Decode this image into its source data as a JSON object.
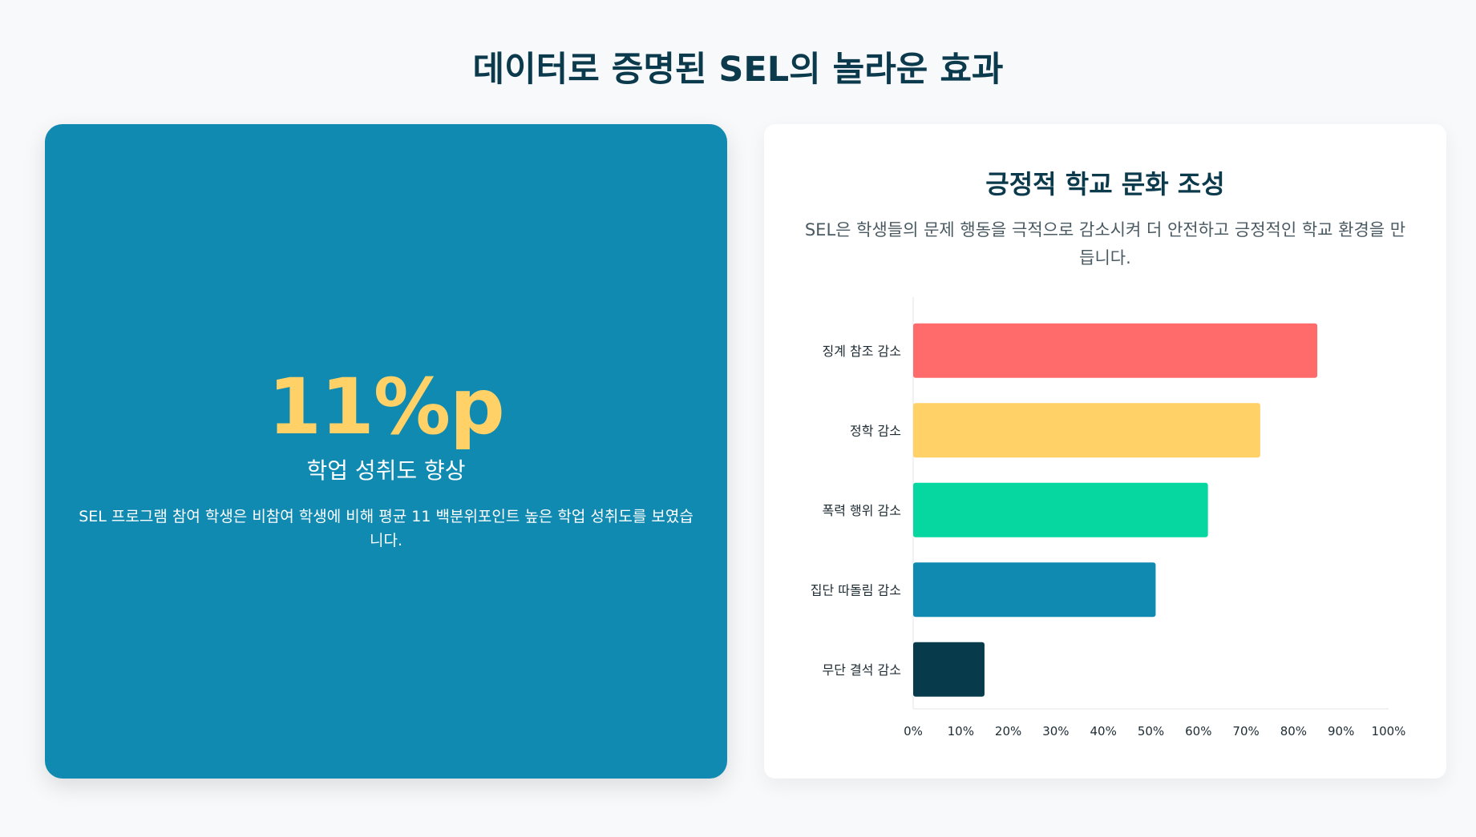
{
  "page": {
    "title": "데이터로 증명된 SEL의 놀라운 효과"
  },
  "stat_card": {
    "value": "11%p",
    "label": "학업 성취도 향상",
    "description": "SEL 프로그램 참여 학생은 비참여 학생에 비해 평균 11 백분위포인트 높은 학업 성취도를 보였습니다.",
    "background": "#118ab2",
    "value_color": "#ffd166"
  },
  "chart_card": {
    "title": "긍정적 학교 문화 조성",
    "subtitle": "SEL은 학생들의 문제 행동을 극적으로 감소시켜 더 안전하고 긍정적인 학교 환경을 만듭니다."
  },
  "chart_data": {
    "type": "bar",
    "orientation": "horizontal",
    "categories": [
      "징계 참조 감소",
      "정학 감소",
      "폭력 행위 감소",
      "집단 따돌림 감소",
      "무단 결석 감소"
    ],
    "values": [
      85,
      73,
      62,
      51,
      15
    ],
    "colors": [
      "#ff6b6b",
      "#ffd166",
      "#06d6a0",
      "#118ab2",
      "#073b4c"
    ],
    "xlim": [
      0,
      100
    ],
    "xticks": [
      0,
      10,
      20,
      30,
      40,
      50,
      60,
      70,
      80,
      90,
      100
    ],
    "tick_suffix": "%",
    "grid": false,
    "legend": "none"
  }
}
